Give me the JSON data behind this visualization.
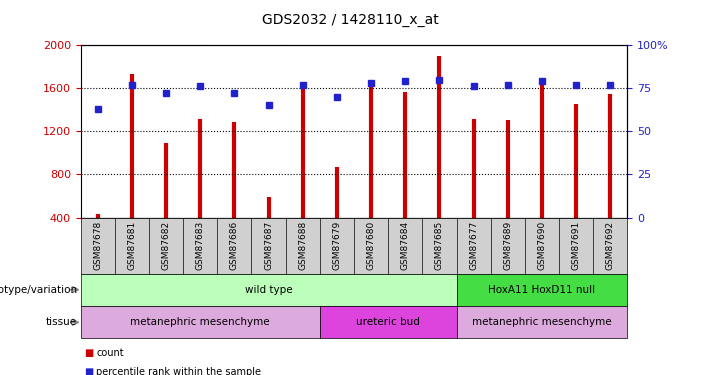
{
  "title": "GDS2032 / 1428110_x_at",
  "samples": [
    "GSM87678",
    "GSM87681",
    "GSM87682",
    "GSM87683",
    "GSM87686",
    "GSM87687",
    "GSM87688",
    "GSM87679",
    "GSM87680",
    "GSM87684",
    "GSM87685",
    "GSM87677",
    "GSM87689",
    "GSM87690",
    "GSM87691",
    "GSM87692"
  ],
  "counts": [
    430,
    1730,
    1090,
    1310,
    1290,
    590,
    1620,
    870,
    1640,
    1560,
    1900,
    1310,
    1300,
    1630,
    1450,
    1550
  ],
  "percentiles": [
    63,
    77,
    72,
    76,
    72,
    65,
    77,
    70,
    78,
    79,
    80,
    76,
    77,
    79,
    77,
    77
  ],
  "ylim_left": [
    400,
    2000
  ],
  "ylim_right": [
    0,
    100
  ],
  "yticks_left": [
    400,
    800,
    1200,
    1600,
    2000
  ],
  "yticks_right": [
    0,
    25,
    50,
    75,
    100
  ],
  "bar_color": "#cc0000",
  "dot_color": "#2222cc",
  "background_color": "#ffffff",
  "plot_bg": "#ffffff",
  "xtick_bg": "#d0d0d0",
  "genotype_groups": [
    {
      "label": "wild type",
      "start": 0,
      "end": 10,
      "color": "#bbffbb"
    },
    {
      "label": "HoxA11 HoxD11 null",
      "start": 11,
      "end": 15,
      "color": "#44dd44"
    }
  ],
  "tissue_groups": [
    {
      "label": "metanephric mesenchyme",
      "start": 0,
      "end": 6,
      "color": "#ddaadd"
    },
    {
      "label": "ureteric bud",
      "start": 7,
      "end": 10,
      "color": "#dd44dd"
    },
    {
      "label": "metanephric mesenchyme",
      "start": 11,
      "end": 15,
      "color": "#ddaadd"
    }
  ],
  "legend_count_color": "#cc0000",
  "legend_pct_color": "#2222cc",
  "left_axis_color": "#cc0000",
  "right_axis_color": "#2222cc",
  "row_label_genotype": "genotype/variation",
  "row_label_tissue": "tissue"
}
